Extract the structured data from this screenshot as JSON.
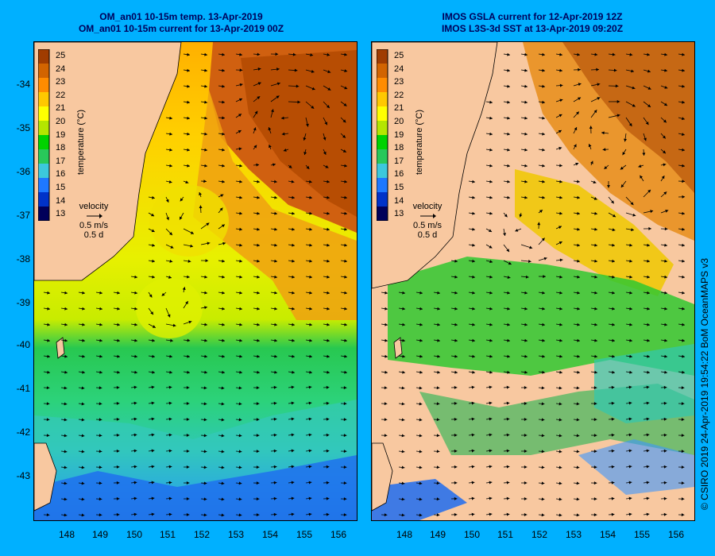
{
  "left_panel": {
    "title_line1": "OM_an01 10-15m temp. 13-Apr-2019",
    "title_line2": "OM_an01 10-15m current for 13-Apr-2019 00Z",
    "colorbar": {
      "ticks": [
        "25",
        "24",
        "23",
        "22",
        "21",
        "20",
        "19",
        "18",
        "17",
        "16",
        "15",
        "14",
        "13"
      ],
      "label": "temperature (°C)"
    },
    "velocity_legend": {
      "label": "velocity",
      "speed": "0.5 m/s",
      "duration": "0.5 d"
    }
  },
  "right_panel": {
    "title_line1": "IMOS GSLA current for 12-Apr-2019 12Z",
    "title_line2": "IMOS L3S-3d SST at 13-Apr-2019 09:20Z",
    "colorbar": {
      "ticks": [
        "25",
        "24",
        "23",
        "22",
        "21",
        "20",
        "19",
        "18",
        "17",
        "16",
        "15",
        "14",
        "13"
      ],
      "label": "temperature (°C)"
    },
    "velocity_legend": {
      "label": "velocity",
      "speed": "0.5 m/s",
      "duration": "0.5 d"
    }
  },
  "axes": {
    "lat_ticks": [
      "-34",
      "-35",
      "-36",
      "-37",
      "-38",
      "-39",
      "-40",
      "-41",
      "-42",
      "-43"
    ],
    "lon_ticks": [
      "148",
      "149",
      "150",
      "151",
      "152",
      "153",
      "154",
      "155",
      "156"
    ],
    "lon_range": [
      147.1,
      156.6
    ],
    "lat_range": [
      -33.4,
      -44.0
    ]
  },
  "credit": "© CSIRO 2019   24-Apr-2019 19:54:22 BoM OceanMAPS v3",
  "colors": {
    "background": "#00b0ff",
    "land": "#f8c8a0",
    "title_text": "#00005a",
    "palette": [
      "#00005a",
      "#0032c8",
      "#1e78ff",
      "#3cc8dc",
      "#28c85a",
      "#00d200",
      "#b4e600",
      "#ffff00",
      "#ffc800",
      "#ff8c00",
      "#d26400",
      "#a03c00"
    ]
  }
}
